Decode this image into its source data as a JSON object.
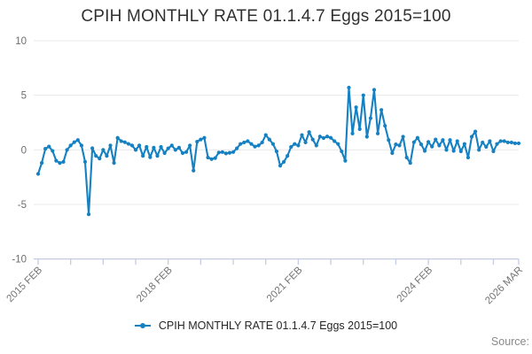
{
  "title": "CPIH MONTHLY RATE 01.1.4.7 Eggs 2015=100",
  "legend": {
    "label": "CPIH MONTHLY RATE 01.1.4.7 Eggs 2015=100",
    "marker": "line-dot-marker"
  },
  "source_label": "Source:",
  "colors": {
    "series": "#1580c2",
    "gridline": "#e8e8e8",
    "axis": "#c3cce3",
    "tick_label": "#757575",
    "y_label": "#6e6e6e"
  },
  "chart_data": {
    "type": "line",
    "title": "CPIH MONTHLY RATE 01.1.4.7 Eggs 2015=100",
    "x_unit": "month",
    "x_start": "2015 FEB",
    "x_end": "2026 MAR",
    "ylim": [
      -10,
      10
    ],
    "yticks": [
      10,
      5,
      0,
      -5,
      -10
    ],
    "grid": true,
    "legend_position": "bottom",
    "xtick_minor_every_months": 9,
    "xticks_major": [
      {
        "month_index": 0,
        "label": "2015 FEB"
      },
      {
        "month_index": 36,
        "label": "2018 FEB"
      },
      {
        "month_index": 72,
        "label": "2021 FEB"
      },
      {
        "month_index": 108,
        "label": "2024 FEB"
      },
      {
        "month_index": 133,
        "label": "2026 MAR"
      }
    ],
    "series": [
      {
        "name": "CPIH MONTHLY RATE 01.1.4.7 Eggs 2015=100",
        "start": "2015-02",
        "values": [
          -2.2,
          -1.2,
          0.1,
          0.3,
          -0.1,
          -1.0,
          -1.2,
          -1.1,
          0.0,
          0.4,
          0.7,
          0.9,
          0.4,
          -1.1,
          -5.9,
          0.15,
          -0.55,
          -0.8,
          0.0,
          -0.55,
          0.4,
          -1.2,
          1.1,
          0.8,
          0.7,
          0.55,
          0.4,
          0.0,
          0.4,
          -0.55,
          0.27,
          -0.67,
          0.2,
          -0.55,
          0.27,
          -0.3,
          0.14,
          0.4,
          0.0,
          0.2,
          -0.3,
          -0.2,
          0.4,
          -1.9,
          0.75,
          0.95,
          1.1,
          -0.7,
          -0.85,
          -0.75,
          -0.25,
          -0.2,
          -0.33,
          -0.27,
          -0.2,
          0.14,
          0.54,
          0.68,
          0.8,
          0.54,
          0.3,
          0.4,
          0.68,
          1.36,
          0.95,
          0.54,
          -0.14,
          -1.45,
          -1.1,
          -0.55,
          0.27,
          0.54,
          0.4,
          1.36,
          0.68,
          1.63,
          0.95,
          0.4,
          1.22,
          1.08,
          1.22,
          1.1,
          0.8,
          0.54,
          -0.14,
          -1.0,
          5.7,
          1.5,
          3.9,
          1.9,
          5.0,
          1.2,
          2.9,
          5.5,
          1.5,
          3.66,
          2.2,
          0.9,
          -0.3,
          0.5,
          0.4,
          1.2,
          -0.7,
          -1.2,
          0.7,
          1.1,
          0.5,
          -0.1,
          0.73,
          0.3,
          0.95,
          0.4,
          0.9,
          0.0,
          0.9,
          -0.1,
          0.8,
          -0.14,
          0.54,
          -0.7,
          1.2,
          1.68,
          0.0,
          0.68,
          0.27,
          0.8,
          -0.14,
          0.54,
          0.8,
          0.8,
          0.68,
          0.68,
          0.6,
          0.6
        ]
      }
    ]
  }
}
